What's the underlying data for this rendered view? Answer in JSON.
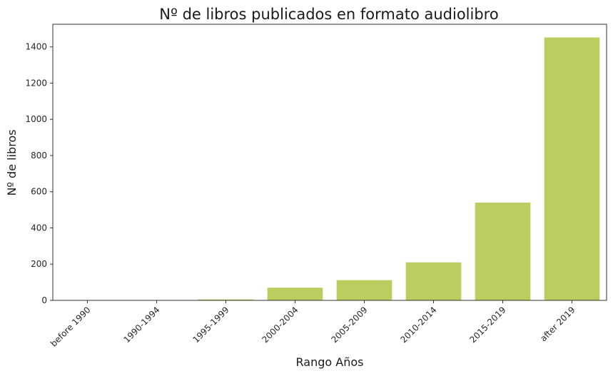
{
  "chart_data": {
    "type": "bar",
    "title": "Nº de libros publicados en formato audiolibro",
    "xlabel": "Rango Años",
    "ylabel": "Nº de libros",
    "categories": [
      "before 1990",
      "1990-1994",
      "1995-1999",
      "2000-2004",
      "2005-2009",
      "2010-2014",
      "2015-2019",
      "after 2019"
    ],
    "values": [
      1,
      2,
      5,
      70,
      112,
      210,
      540,
      1452
    ],
    "ylim": [
      0,
      1525
    ],
    "yticks": [
      0,
      200,
      400,
      600,
      800,
      1000,
      1200,
      1400
    ],
    "bar_color": "#bccd60",
    "grid": false
  }
}
